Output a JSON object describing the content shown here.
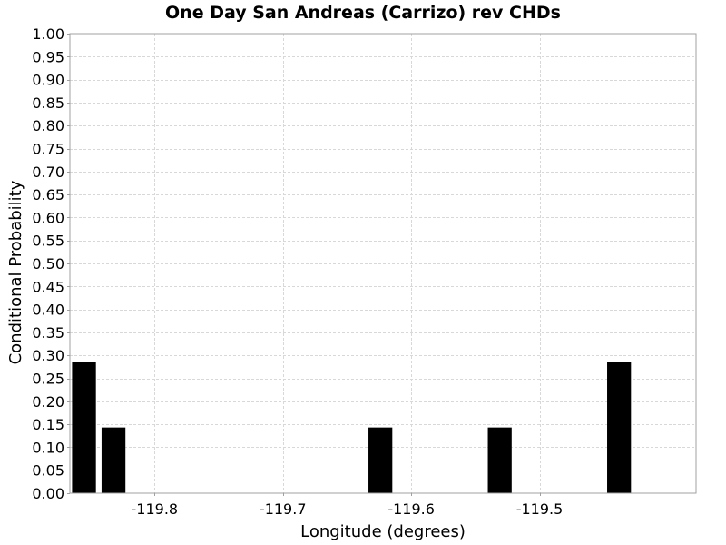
{
  "chart_data": {
    "type": "bar",
    "title": "One Day San Andreas (Carrizo) rev CHDs",
    "xlabel": "Longitude (degrees)",
    "ylabel": "Conditional Probability",
    "xlim": [
      -119.866,
      -119.378
    ],
    "ylim": [
      0.0,
      1.0
    ],
    "grid": true,
    "bar_width": 0.02,
    "x_ticks": [
      "-119.8",
      "-119.7",
      "-119.6",
      "-119.5"
    ],
    "x_tick_values": [
      -119.8,
      -119.7,
      -119.6,
      -119.5
    ],
    "y_ticks": [
      "0.00",
      "0.05",
      "0.10",
      "0.15",
      "0.20",
      "0.25",
      "0.30",
      "0.35",
      "0.40",
      "0.45",
      "0.50",
      "0.55",
      "0.60",
      "0.65",
      "0.70",
      "0.75",
      "0.80",
      "0.85",
      "0.90",
      "0.95",
      "1.00"
    ],
    "y_tick_values": [
      0.0,
      0.05,
      0.1,
      0.15,
      0.2,
      0.25,
      0.3,
      0.35,
      0.4,
      0.45,
      0.5,
      0.55,
      0.6,
      0.65,
      0.7,
      0.75,
      0.8,
      0.85,
      0.9,
      0.95,
      1.0
    ],
    "bars": [
      {
        "x": -119.855,
        "y": 0.286
      },
      {
        "x": -119.832,
        "y": 0.143
      },
      {
        "x": -119.624,
        "y": 0.143
      },
      {
        "x": -119.531,
        "y": 0.143
      },
      {
        "x": -119.438,
        "y": 0.286
      }
    ],
    "colors": {
      "bar": "#000000",
      "grid": "#d8d8d8",
      "plot_border": "#a0a0a0",
      "background": "#ffffff"
    }
  }
}
